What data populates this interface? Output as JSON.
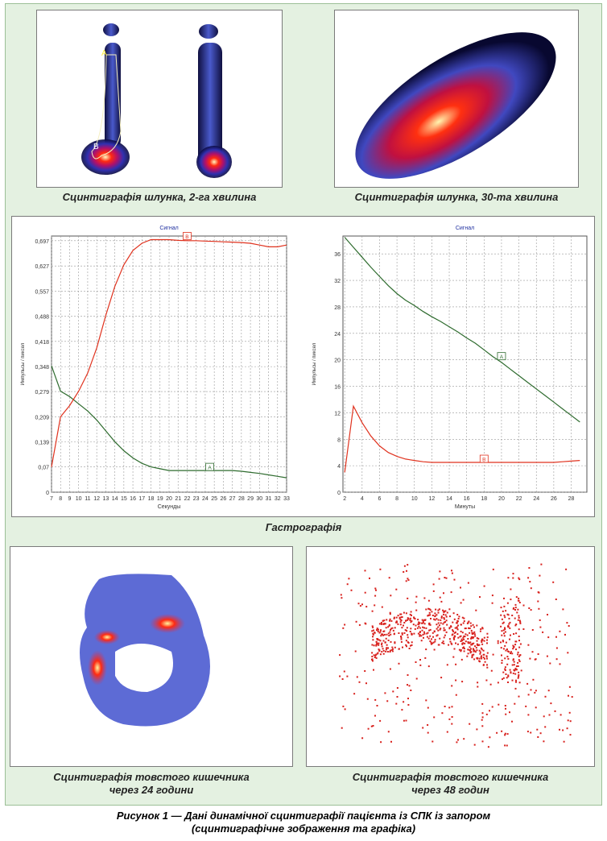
{
  "captions": {
    "top_left": "Сцинтиграфія шлунка, 2-га хвилина",
    "top_right": "Сцинтиграфія шлунка, 30-та хвилина",
    "middle": "Гастрографія",
    "bottom_left_1": "Сцинтиграфія товстого кишечника",
    "bottom_left_2": "через 24 години",
    "bottom_right_1": "Сцинтиграфія товстого кишечника",
    "bottom_right_2": "через 48 годин",
    "figure_1": "Рисунок 1 — Дані динамічної сцинтиграфії пацієнта із СПК із запором",
    "figure_2": "(сцинтиграфічне зображення та графіка)"
  },
  "image_labels": {
    "a": "A",
    "b": "B"
  },
  "chart_data": [
    {
      "type": "line",
      "title": "Сигнал",
      "x_label": "Секунды",
      "y_label": "Импульсы / пиксел",
      "x": [
        7,
        8,
        9,
        10,
        11,
        12,
        13,
        14,
        15,
        16,
        17,
        18,
        19,
        20,
        21,
        22,
        23,
        24,
        25,
        26,
        27,
        28,
        29,
        30,
        31,
        32,
        33
      ],
      "series": [
        {
          "name": "A",
          "color": "#2e6b2e",
          "values": [
            0.35,
            0.28,
            0.265,
            0.245,
            0.225,
            0.2,
            0.17,
            0.14,
            0.115,
            0.095,
            0.08,
            0.07,
            0.065,
            0.06,
            0.06,
            0.06,
            0.06,
            0.06,
            0.06,
            0.06,
            0.06,
            0.058,
            0.055,
            0.052,
            0.048,
            0.044,
            0.04
          ]
        },
        {
          "name": "B",
          "color": "#e0321e",
          "values": [
            0.07,
            0.209,
            0.24,
            0.28,
            0.33,
            0.4,
            0.49,
            0.57,
            0.63,
            0.67,
            0.69,
            0.7,
            0.7,
            0.7,
            0.698,
            0.697,
            0.697,
            0.696,
            0.695,
            0.694,
            0.693,
            0.692,
            0.69,
            0.685,
            0.68,
            0.68,
            0.685
          ]
        }
      ],
      "annotations": [
        {
          "text": "B",
          "x": 22,
          "y": 0.7
        },
        {
          "text": "A",
          "x": 24.5,
          "y": 0.06
        }
      ],
      "xlim": [
        7,
        33
      ],
      "ylim": [
        0,
        0.71
      ],
      "xticks": [
        7,
        8,
        9,
        10,
        11,
        12,
        13,
        14,
        15,
        16,
        17,
        18,
        19,
        20,
        21,
        22,
        23,
        24,
        25,
        26,
        27,
        28,
        29,
        30,
        31,
        32,
        33
      ],
      "yticks": [
        0,
        {
          "value": 0.07,
          "label": "0,07"
        },
        {
          "value": 0.139,
          "label": "0,139"
        },
        {
          "value": 0.209,
          "label": "0,209"
        },
        {
          "value": 0.279,
          "label": "0,279"
        },
        {
          "value": 0.348,
          "label": "0,348"
        },
        {
          "value": 0.418,
          "label": "0,418"
        },
        {
          "value": 0.488,
          "label": "0,488"
        },
        {
          "value": 0.557,
          "label": "0,557"
        },
        {
          "value": 0.627,
          "label": "0,627"
        },
        {
          "value": 0.697,
          "label": "0,697"
        }
      ],
      "grid": true
    },
    {
      "type": "line",
      "title": "Сигнал",
      "x_label": "Минуты",
      "y_label": "Импульсы / пиксел",
      "x": [
        2,
        3,
        4,
        5,
        6,
        7,
        8,
        9,
        10,
        11,
        12,
        13,
        14,
        15,
        16,
        17,
        18,
        19,
        20,
        21,
        22,
        23,
        24,
        25,
        26,
        27,
        28,
        29
      ],
      "series": [
        {
          "name": "A",
          "color": "#2e6b2e",
          "values": [
            38.5,
            37,
            35.5,
            34,
            32.6,
            31.2,
            30,
            29,
            28.2,
            27.3,
            26.5,
            25.8,
            25,
            24.2,
            23.3,
            22.5,
            21.5,
            20.5,
            19.6,
            18.6,
            17.6,
            16.6,
            15.6,
            14.6,
            13.6,
            12.6,
            11.6,
            10.6
          ]
        },
        {
          "name": "B",
          "color": "#e0321e",
          "values": [
            3,
            13,
            10.5,
            8.5,
            7,
            6,
            5.4,
            5,
            4.8,
            4.6,
            4.5,
            4.5,
            4.5,
            4.5,
            4.5,
            4.5,
            4.5,
            4.5,
            4.5,
            4.5,
            4.5,
            4.5,
            4.5,
            4.5,
            4.5,
            4.6,
            4.7,
            4.8
          ]
        }
      ],
      "annotations": [
        {
          "text": "A",
          "x": 20,
          "y": 20
        },
        {
          "text": "B",
          "x": 18,
          "y": 4.5
        }
      ],
      "xlim": [
        1.8,
        29.8
      ],
      "ylim": [
        0,
        38.7
      ],
      "xticks": [
        2,
        4,
        6,
        8,
        10,
        12,
        14,
        16,
        18,
        20,
        22,
        24,
        26,
        28
      ],
      "yticks": [
        0,
        4,
        8,
        12,
        16,
        20,
        24,
        28,
        32,
        36
      ],
      "grid": true
    }
  ]
}
